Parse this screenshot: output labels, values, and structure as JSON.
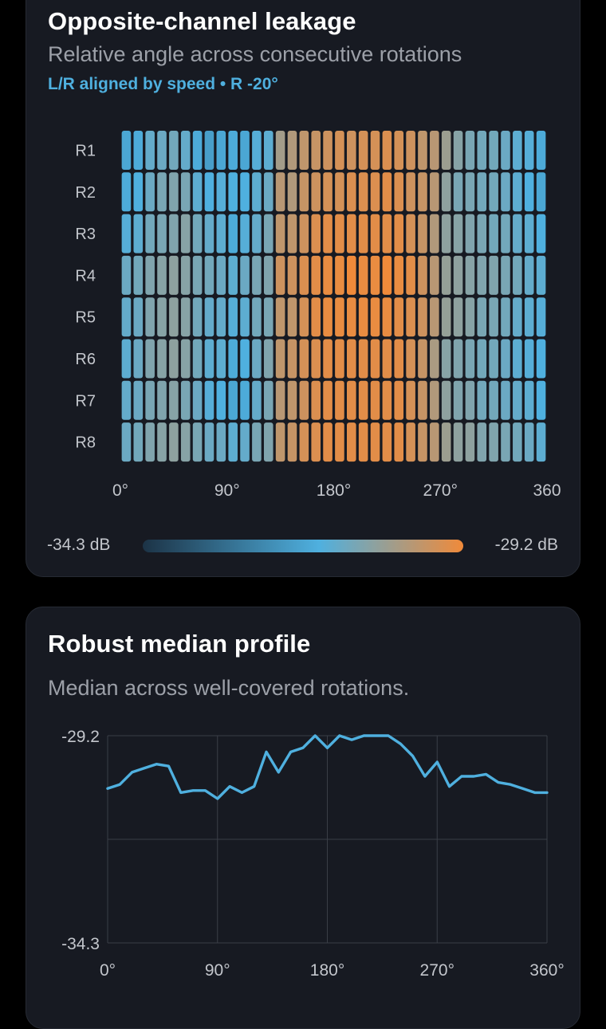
{
  "heatmap_card": {
    "title": "Opposite-channel leakage",
    "subtitle": "Relative angle across consecutive rotations",
    "meta": "L/R aligned by speed • R -20°",
    "colorbar": {
      "min_label": "-34.3 dB",
      "max_label": "-29.2 dB"
    }
  },
  "profile_card": {
    "title": "Robust median profile",
    "subtitle": "Median across well-covered rotations."
  },
  "colors": {
    "cold": "#1c3346",
    "mid": "#4fb0df",
    "warm": "#f08a3a",
    "line": "#4fb0df",
    "card_bg": "#171a22",
    "grid": "#3a3e47"
  },
  "chart_data": [
    {
      "type": "heatmap",
      "rows": [
        "R1",
        "R2",
        "R3",
        "R4",
        "R5",
        "R6",
        "R7",
        "R8"
      ],
      "x_ticks": [
        "0°",
        "90°",
        "180°",
        "270°",
        "360"
      ],
      "xlim": [
        0,
        360
      ],
      "x": [
        0,
        10,
        20,
        30,
        40,
        50,
        60,
        70,
        80,
        90,
        100,
        110,
        120,
        130,
        140,
        150,
        160,
        170,
        180,
        190,
        200,
        210,
        220,
        230,
        240,
        250,
        260,
        270,
        280,
        290,
        300,
        310,
        320,
        330,
        340,
        350
      ],
      "value_range": [
        -34.3,
        -29.2
      ],
      "colorbar_labels": [
        "-34.3 dB",
        "-29.2 dB"
      ],
      "values": [
        [
          -31.7,
          -31.6,
          -31.2,
          -31.1,
          -31.0,
          -31.2,
          -31.6,
          -31.9,
          -31.7,
          -31.6,
          -31.7,
          -31.4,
          -31.3,
          -30.3,
          -30.1,
          -29.9,
          -29.8,
          -29.7,
          -29.6,
          -29.7,
          -29.6,
          -29.6,
          -29.5,
          -29.6,
          -29.7,
          -29.9,
          -30.0,
          -30.4,
          -30.7,
          -30.9,
          -31.0,
          -31.0,
          -31.1,
          -31.3,
          -31.4,
          -31.6
        ],
        [
          -31.6,
          -31.5,
          -31.1,
          -30.9,
          -30.8,
          -30.9,
          -31.3,
          -31.5,
          -31.4,
          -31.5,
          -31.5,
          -31.3,
          -31.1,
          -30.0,
          -30.1,
          -29.8,
          -29.7,
          -29.6,
          -29.6,
          -29.5,
          -29.5,
          -29.5,
          -29.4,
          -29.5,
          -29.7,
          -29.8,
          -30.0,
          -30.6,
          -30.9,
          -30.9,
          -31.0,
          -31.0,
          -31.1,
          -31.3,
          -31.5,
          -31.7
        ],
        [
          -31.4,
          -31.3,
          -31.0,
          -30.9,
          -30.8,
          -30.7,
          -31.0,
          -31.2,
          -31.3,
          -31.6,
          -31.4,
          -31.2,
          -30.9,
          -29.9,
          -29.9,
          -29.7,
          -29.5,
          -29.4,
          -29.4,
          -29.4,
          -29.4,
          -29.4,
          -29.4,
          -29.4,
          -29.6,
          -29.8,
          -30.1,
          -30.6,
          -30.7,
          -30.8,
          -30.9,
          -31.0,
          -31.0,
          -31.2,
          -31.3,
          -31.5
        ],
        [
          -31.1,
          -31.0,
          -30.8,
          -30.7,
          -30.6,
          -30.7,
          -30.9,
          -31.0,
          -31.1,
          -31.3,
          -31.1,
          -30.9,
          -30.8,
          -29.7,
          -29.7,
          -29.5,
          -29.4,
          -29.3,
          -29.3,
          -29.2,
          -29.3,
          -29.3,
          -29.2,
          -29.3,
          -29.4,
          -29.7,
          -30.0,
          -30.5,
          -30.6,
          -30.7,
          -30.8,
          -30.8,
          -30.9,
          -31.0,
          -31.2,
          -31.3
        ],
        [
          -31.2,
          -31.1,
          -30.8,
          -30.7,
          -30.6,
          -30.7,
          -31.0,
          -31.2,
          -31.2,
          -31.4,
          -31.3,
          -31.0,
          -30.9,
          -29.9,
          -29.9,
          -29.6,
          -29.4,
          -29.3,
          -29.3,
          -29.3,
          -29.3,
          -29.3,
          -29.3,
          -29.4,
          -29.5,
          -29.7,
          -30.0,
          -30.5,
          -30.6,
          -30.7,
          -30.9,
          -30.9,
          -31.0,
          -31.2,
          -31.3,
          -31.4
        ],
        [
          -31.3,
          -31.1,
          -30.8,
          -30.7,
          -30.6,
          -30.7,
          -31.0,
          -31.3,
          -31.3,
          -31.6,
          -31.5,
          -31.1,
          -30.8,
          -29.9,
          -29.8,
          -29.6,
          -29.5,
          -29.4,
          -29.4,
          -29.4,
          -29.4,
          -29.4,
          -29.4,
          -29.4,
          -29.6,
          -29.8,
          -30.2,
          -30.7,
          -30.8,
          -30.9,
          -31.0,
          -31.0,
          -31.1,
          -31.3,
          -31.4,
          -31.5
        ],
        [
          -31.2,
          -31.1,
          -30.9,
          -30.8,
          -30.7,
          -30.9,
          -31.1,
          -31.4,
          -31.5,
          -31.7,
          -31.6,
          -31.2,
          -30.9,
          -30.0,
          -29.9,
          -29.7,
          -29.5,
          -29.4,
          -29.4,
          -29.4,
          -29.4,
          -29.4,
          -29.4,
          -29.4,
          -29.6,
          -29.8,
          -30.1,
          -30.6,
          -30.8,
          -30.8,
          -31.0,
          -31.0,
          -31.1,
          -31.2,
          -31.3,
          -31.5
        ],
        [
          -31.1,
          -31.0,
          -30.8,
          -30.7,
          -30.6,
          -30.7,
          -30.9,
          -31.1,
          -31.1,
          -31.3,
          -31.2,
          -30.9,
          -30.8,
          -29.9,
          -29.8,
          -29.6,
          -29.5,
          -29.4,
          -29.4,
          -29.4,
          -29.4,
          -29.4,
          -29.4,
          -29.4,
          -29.6,
          -29.8,
          -30.0,
          -30.4,
          -30.6,
          -30.6,
          -30.8,
          -30.8,
          -30.9,
          -31.0,
          -31.1,
          -31.3
        ]
      ]
    },
    {
      "type": "line",
      "x": [
        0,
        10,
        20,
        30,
        40,
        50,
        60,
        70,
        80,
        90,
        100,
        110,
        120,
        130,
        140,
        150,
        160,
        170,
        180,
        190,
        200,
        210,
        220,
        230,
        240,
        250,
        260,
        270,
        280,
        290,
        300,
        310,
        320,
        330,
        340,
        350,
        360
      ],
      "y": [
        -30.5,
        -30.4,
        -30.1,
        -30.0,
        -29.9,
        -29.95,
        -30.6,
        -30.55,
        -30.55,
        -30.75,
        -30.45,
        -30.6,
        -30.45,
        -29.6,
        -30.1,
        -29.6,
        -29.5,
        -29.2,
        -29.5,
        -29.2,
        -29.3,
        -29.2,
        -29.2,
        -29.2,
        -29.4,
        -29.7,
        -30.2,
        -29.85,
        -30.45,
        -30.2,
        -30.2,
        -30.15,
        -30.35,
        -30.4,
        -30.5,
        -30.6,
        -30.6
      ],
      "xlim": [
        0,
        360
      ],
      "ylim": [
        -34.3,
        -29.2
      ],
      "x_ticks": [
        "0°",
        "90°",
        "180°",
        "270°",
        "360°"
      ],
      "y_ticks": [
        "-29.2",
        "-34.3"
      ],
      "grid": true
    }
  ]
}
